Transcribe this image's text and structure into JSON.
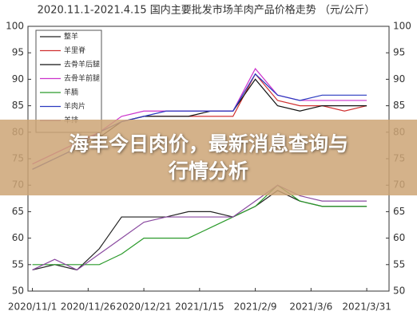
{
  "chart_data": {
    "type": "line",
    "title": "2020.11.1-2021.4.15 国内主要批发市场羊肉产品价格走势 （元/公斤）",
    "x": [
      "2020/11/1",
      "2020/11/11",
      "2020/11/21",
      "2020/12/1",
      "2020/12/11",
      "2020/12/21",
      "2020/12/31",
      "2021/1/10",
      "2021/1/20",
      "2021/1/30",
      "2021/2/9",
      "2021/2/19",
      "2021/3/1",
      "2021/3/11",
      "2021/3/21",
      "2021/3/31"
    ],
    "xlim": [
      "2020/10/30",
      "2021/4/10"
    ],
    "xticks": [
      "2020/11/1",
      "2020/11/26",
      "2020/12/21",
      "2021/1/15",
      "2021/2/9",
      "2021/3/6",
      "2021/3/31"
    ],
    "ylim": [
      50,
      100
    ],
    "yticks": [
      50,
      55,
      60,
      65,
      70,
      75,
      80,
      85,
      90,
      95,
      100
    ],
    "y2lim": [
      50,
      100
    ],
    "y2ticks": [
      50,
      55,
      60,
      65,
      70,
      75,
      80,
      85,
      90,
      95,
      100
    ],
    "legend": "upper left",
    "series": [
      {
        "name": "整羊",
        "color": "#222222",
        "values": [
          54,
          55,
          54,
          58,
          64,
          64,
          64,
          65,
          65,
          64,
          66,
          69,
          67,
          66,
          66,
          66
        ]
      },
      {
        "name": "羊里脊",
        "color": "#d03030",
        "values": [
          74,
          76,
          78,
          80,
          82,
          83,
          83,
          83,
          83,
          83,
          91,
          86,
          85,
          85,
          84,
          85
        ]
      },
      {
        "name": "去骨羊后腿",
        "color": "#111111",
        "values": [
          73,
          75,
          77,
          79,
          82,
          83,
          83,
          83,
          84,
          84,
          90,
          85,
          84,
          85,
          85,
          85
        ]
      },
      {
        "name": "去骨羊前腿",
        "color": "#cc33cc",
        "values": [
          74,
          76,
          78,
          80,
          83,
          84,
          84,
          84,
          84,
          84,
          92,
          87,
          86,
          86,
          86,
          86
        ]
      },
      {
        "name": "羊腩",
        "color": "#2a9a2a",
        "values": [
          55,
          55,
          55,
          55,
          57,
          60,
          60,
          60,
          62,
          64,
          66,
          70,
          67,
          66,
          66,
          66
        ]
      },
      {
        "name": "羊肉片",
        "color": "#2a3ac0",
        "values": [
          73,
          75,
          77,
          80,
          82,
          83,
          84,
          84,
          84,
          84,
          91,
          87,
          86,
          87,
          87,
          87
        ]
      },
      {
        "name": "羊排",
        "color": "#8a4aa0",
        "values": [
          54,
          56,
          54,
          57,
          60,
          63,
          64,
          64,
          64,
          64,
          67,
          70,
          68,
          67,
          67,
          67
        ]
      }
    ]
  },
  "banner": {
    "lines": [
      "海丰今日肉价，最新消息查询与",
      "行情分析"
    ]
  }
}
